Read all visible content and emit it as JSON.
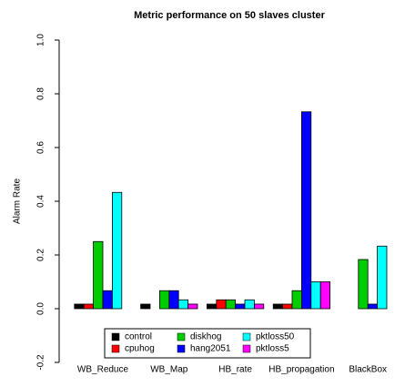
{
  "chart_data": {
    "type": "bar",
    "title": "Metric performance on 50 slaves cluster",
    "ylabel": "Alarm Rate",
    "categories": [
      "WB_Reduce",
      "WB_Map",
      "HB_rate",
      "HB_propagation",
      "BlackBox"
    ],
    "series": [
      {
        "name": "control",
        "color": "#000000",
        "values": [
          0.017,
          0.017,
          0.017,
          0.017,
          0
        ]
      },
      {
        "name": "cpuhog",
        "color": "#ff0000",
        "values": [
          0.017,
          0,
          0.033,
          0.017,
          0
        ]
      },
      {
        "name": "diskhog",
        "color": "#00cd00",
        "values": [
          0.25,
          0.067,
          0.033,
          0.067,
          0.183
        ]
      },
      {
        "name": "hang2051",
        "color": "#0000ff",
        "values": [
          0.067,
          0.067,
          0.017,
          0.733,
          0.017
        ]
      },
      {
        "name": "pktloss50",
        "color": "#00ffff",
        "values": [
          0.433,
          0.033,
          0.033,
          0.1,
          0.233
        ]
      },
      {
        "name": "pktloss5",
        "color": "#ff00ff",
        "values": [
          0,
          0.017,
          0.017,
          0.1,
          0
        ]
      }
    ],
    "ylim": [
      -0.2,
      1.0
    ],
    "yticks": [
      {
        "value": -0.2,
        "label": "-0.2"
      },
      {
        "value": 0,
        "label": "0.0"
      },
      0.2,
      0.4,
      0.6,
      0.8,
      {
        "value": 1.0,
        "label": "1.0"
      }
    ],
    "legend": "bottom"
  }
}
